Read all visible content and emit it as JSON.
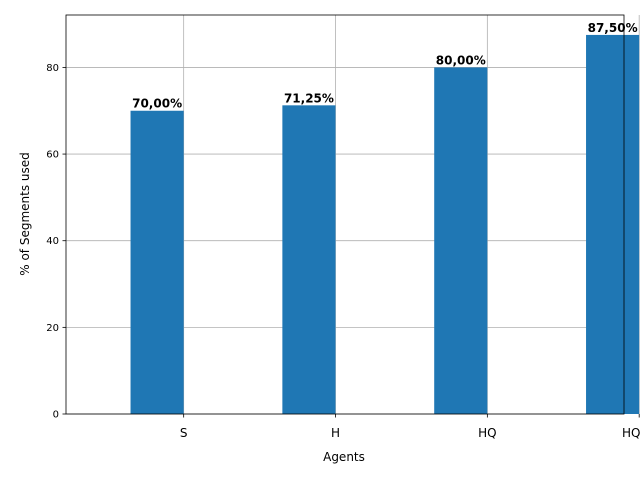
{
  "chart_data": {
    "type": "bar",
    "categories": [
      "S",
      "H",
      "HQ",
      "HQEX"
    ],
    "values": [
      70.0,
      71.25,
      80.0,
      87.5
    ],
    "data_labels": [
      "70,00%",
      "71,25%",
      "80,00%",
      "87,50%"
    ],
    "title": "",
    "xlabel": "Agents",
    "ylabel": "% of Segments used",
    "ylim": [
      0,
      92.1
    ],
    "yticks": [
      0,
      20,
      40,
      60,
      80
    ],
    "ytick_labels": [
      "0",
      "20",
      "40",
      "60",
      "80"
    ],
    "grid": true,
    "bar_color": "#1f77b4",
    "grid_color": "#b0b0b0"
  }
}
